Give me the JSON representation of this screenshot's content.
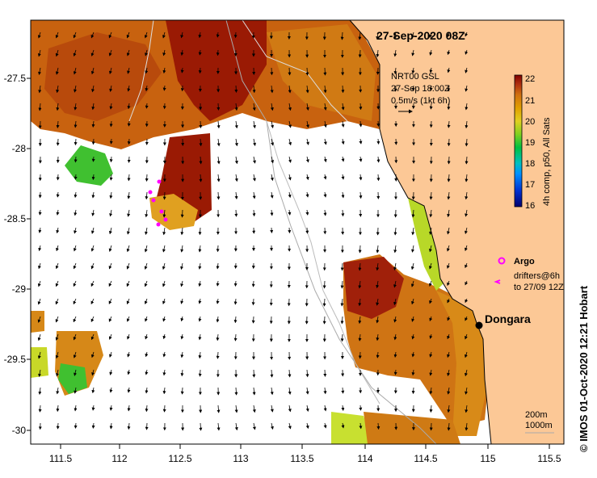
{
  "title": "27-Sep-2020 08Z",
  "current_info": {
    "line1": "NRT00 GSL",
    "line2": "27-Sep 18:00Z",
    "line3": "0.5m/s (1kt 6h)"
  },
  "colorbar": {
    "label": "4h comp, p50, All Sats",
    "min": 16,
    "max": 22,
    "ticks": [
      "22",
      "21",
      "20",
      "19",
      "18",
      "17",
      "16"
    ],
    "colors": [
      "#00006e",
      "#0030d0",
      "#0090ff",
      "#00d0d0",
      "#00c040",
      "#80d020",
      "#e0e020",
      "#e0a000",
      "#d07010",
      "#b03010",
      "#800000"
    ]
  },
  "legend": {
    "argo_label": "Argo",
    "drifters_label_1": "drifters@6h",
    "drifters_label_2": "to 27/09 12Z",
    "argo_color": "#ff00ff"
  },
  "place": {
    "name": "Dongara"
  },
  "bathymetry": {
    "line1": "200m",
    "line2": "1000m"
  },
  "credit": "© IMOS 01-Oct-2020 12:21 Hobart",
  "axes": {
    "x_ticks": [
      "111.5",
      "112",
      "112.5",
      "113",
      "113.5",
      "114",
      "114.5",
      "115",
      "115.5"
    ],
    "y_ticks": [
      "-27.5",
      "-28",
      "-28.5",
      "-29",
      "-29.5",
      "-30"
    ],
    "xlim": [
      111.3,
      115.65
    ],
    "ylim": [
      -30.1,
      -27.1
    ]
  },
  "colors": {
    "land": "#fcc896",
    "warm_dark": "#a01a05",
    "warm": "#c55a0e",
    "warm_mid": "#d68a18",
    "warm_light": "#e0b020",
    "green_light": "#b8e028",
    "green": "#30c030"
  }
}
